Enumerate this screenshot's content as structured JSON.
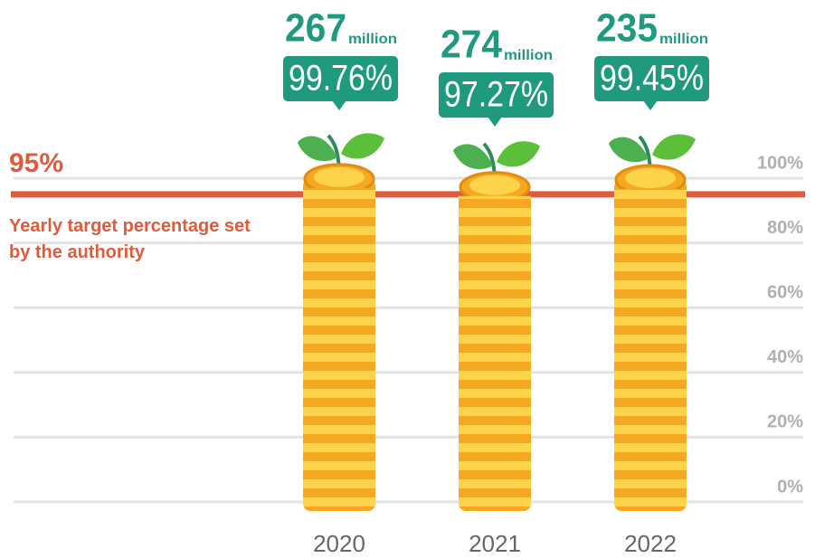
{
  "chart_data": {
    "type": "bar",
    "categories": [
      "2020",
      "2021",
      "2022"
    ],
    "values": [
      99.76,
      97.27,
      99.45
    ],
    "value_labels": [
      "99.76%",
      "97.27%",
      "99.45%"
    ],
    "counts": [
      267,
      274,
      235
    ],
    "count_unit": "million",
    "target": {
      "value": 95,
      "label": "95%"
    },
    "target_text": "Yearly target percentage set by the authority",
    "ylim": [
      0,
      100
    ],
    "yticks": [
      {
        "value": 0,
        "label": "0%"
      },
      {
        "value": 20,
        "label": "20%"
      },
      {
        "value": 40,
        "label": "40%"
      },
      {
        "value": 60,
        "label": "60%"
      },
      {
        "value": 80,
        "label": "80%"
      },
      {
        "value": 100,
        "label": "100%"
      }
    ],
    "grid": true,
    "color": "#f7a823",
    "label_color": "#1f9a7f",
    "target_color": "#e05a3c"
  }
}
